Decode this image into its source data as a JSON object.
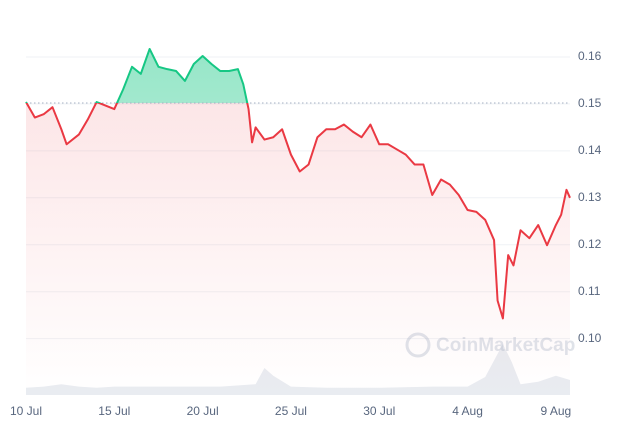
{
  "chart_data": {
    "type": "line",
    "x": [
      0,
      0.5,
      1,
      1.5,
      2,
      2.3,
      3,
      3.5,
      4,
      5,
      5.5,
      6,
      6.5,
      7,
      7.5,
      8,
      8.5,
      9,
      9.5,
      10,
      10.5,
      11,
      11.5,
      12,
      12.3,
      12.6,
      12.8,
      13,
      13.5,
      14,
      14.5,
      15,
      15.5,
      16,
      16.5,
      17,
      17.5,
      18,
      18.5,
      19,
      19.5,
      20,
      20.5,
      21,
      21.5,
      22,
      22.5,
      23,
      23.5,
      24,
      24.5,
      25,
      25.5,
      26,
      26.5,
      26.7,
      27,
      27.3,
      27.6,
      28,
      28.5,
      29,
      29.5,
      30,
      30.3,
      30.6,
      30.8
    ],
    "series": [
      {
        "name": "Price",
        "values": [
          0.1504,
          0.1471,
          0.1478,
          0.1493,
          0.1446,
          0.1414,
          0.1435,
          0.1467,
          0.1504,
          0.1489,
          0.1531,
          0.1579,
          0.1564,
          0.1617,
          0.1579,
          0.1574,
          0.157,
          0.1549,
          0.1585,
          0.1602,
          0.1585,
          0.157,
          0.157,
          0.1574,
          0.1542,
          0.1489,
          0.1418,
          0.145,
          0.1424,
          0.1429,
          0.1446,
          0.1392,
          0.1356,
          0.1371,
          0.1429,
          0.1446,
          0.1446,
          0.1456,
          0.1441,
          0.1429,
          0.1456,
          0.1414,
          0.1414,
          0.1403,
          0.1392,
          0.1371,
          0.1371,
          0.1306,
          0.1339,
          0.1328,
          0.1306,
          0.1274,
          0.127,
          0.1253,
          0.121,
          0.1081,
          0.1043,
          0.1178,
          0.1156,
          0.1231,
          0.1214,
          0.1242,
          0.1199,
          0.1242,
          0.1264,
          0.1317,
          0.13
        ]
      }
    ],
    "baseline": 0.1502,
    "up_color": "#16c784",
    "down_color": "#ea3943",
    "volume": {
      "x": [
        0,
        1,
        2,
        3,
        4,
        5,
        8,
        11,
        13,
        13.5,
        14,
        15,
        17,
        20,
        23,
        25,
        26,
        27,
        27.5,
        28,
        29,
        30,
        30.8
      ],
      "values": [
        12,
        14,
        18,
        14,
        12,
        14,
        14,
        14,
        18,
        45,
        32,
        14,
        12,
        12,
        14,
        14,
        30,
        85,
        55,
        18,
        22,
        32,
        25
      ]
    },
    "xlim": [
      0,
      30.8
    ],
    "ylim": [
      0.088,
      0.17
    ],
    "xticks": [
      {
        "value": 0,
        "label": "10 Jul"
      },
      {
        "value": 5,
        "label": "15 Jul"
      },
      {
        "value": 10,
        "label": "20 Jul"
      },
      {
        "value": 15,
        "label": "25 Jul"
      },
      {
        "value": 20,
        "label": "30 Jul"
      },
      {
        "value": 25,
        "label": "4 Aug"
      },
      {
        "value": 30,
        "label": "9 Aug"
      }
    ],
    "yticks": [
      {
        "value": 0.1,
        "label": "0.10"
      },
      0.11,
      0.12,
      0.13,
      0.14,
      0.15,
      0.16
    ],
    "grid": true,
    "watermark": "CoinMarketCap"
  }
}
